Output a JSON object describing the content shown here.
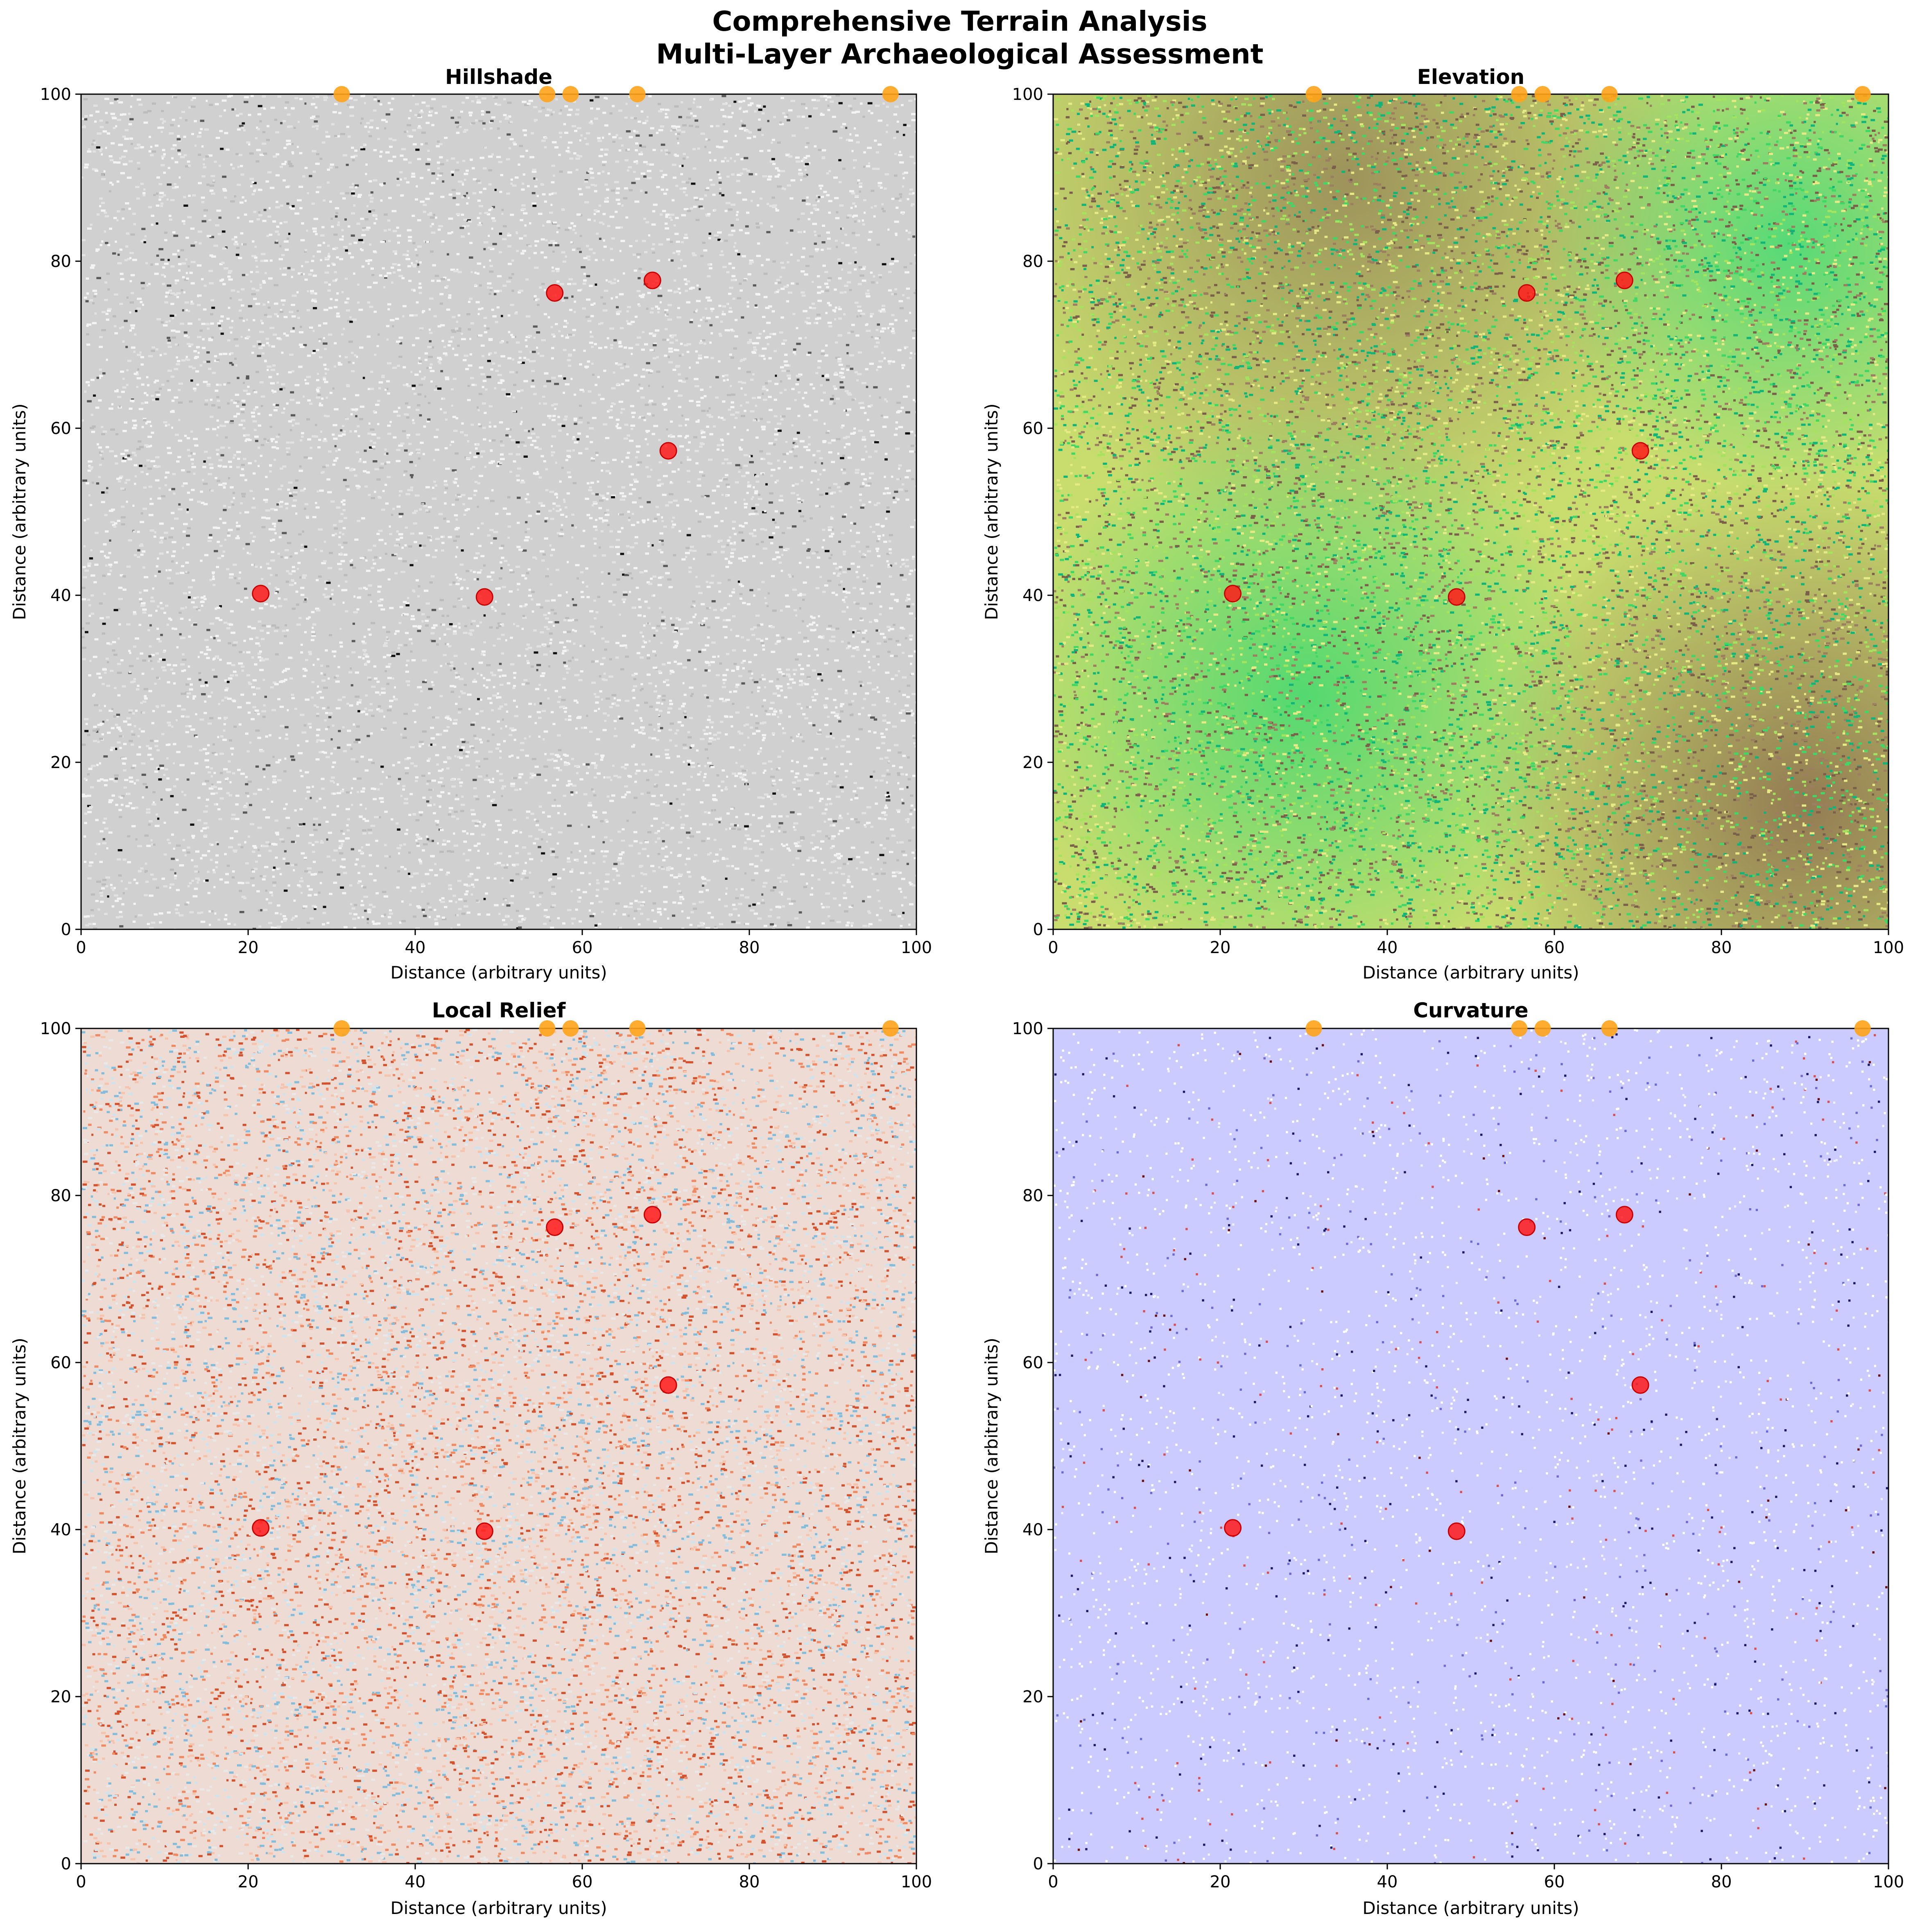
{
  "figure": {
    "title_line1": "Comprehensive Terrain Analysis",
    "title_line2": "Multi-Layer Archaeological Assessment"
  },
  "chart_data": [
    {
      "type": "heatmap",
      "title": "Hillshade",
      "xlabel": "Distance (arbitrary units)",
      "ylabel": "Distance (arbitrary units)",
      "xlim": [
        0,
        100
      ],
      "ylim": [
        0,
        100
      ],
      "xticks": [
        "0",
        "20",
        "40",
        "60",
        "80",
        "100"
      ],
      "yticks": [
        "0",
        "20",
        "40",
        "60",
        "80",
        "100"
      ],
      "colormap": "gray",
      "surface": {
        "base": "#d0d0d0",
        "palette": [
          "#f4f4f4",
          "#e2e2e2",
          "#bcbcbc",
          "#9a9a9a",
          "#5a5a5a",
          "#111111"
        ]
      },
      "red_sites": {
        "color": "#ff1a1a",
        "points": [
          [
            21.5,
            40.2
          ],
          [
            48.3,
            39.8
          ],
          [
            56.7,
            76.2
          ],
          [
            68.4,
            77.7
          ],
          [
            70.3,
            57.3
          ]
        ]
      },
      "orange_sites": {
        "color": "#ffa31a",
        "points": [
          [
            31.2,
            100
          ],
          [
            55.8,
            100
          ],
          [
            58.6,
            100
          ],
          [
            66.6,
            100
          ],
          [
            96.9,
            100
          ]
        ]
      }
    },
    {
      "type": "heatmap",
      "title": "Elevation",
      "xlabel": "Distance (arbitrary units)",
      "ylabel": "Distance (arbitrary units)",
      "xlim": [
        0,
        100
      ],
      "ylim": [
        0,
        100
      ],
      "xticks": [
        "0",
        "20",
        "40",
        "60",
        "80",
        "100"
      ],
      "yticks": [
        "0",
        "20",
        "40",
        "60",
        "80",
        "100"
      ],
      "colormap": "terrain",
      "surface": {
        "base": "#c8dd6e",
        "palette": [
          "#e6ea84",
          "#a3e35e",
          "#3fd866",
          "#11b57a",
          "#9c7f60",
          "#7a5f4a"
        ]
      },
      "red_sites": {
        "color": "#ff1a1a",
        "points": [
          [
            21.5,
            40.2
          ],
          [
            48.3,
            39.8
          ],
          [
            56.7,
            76.2
          ],
          [
            68.4,
            77.7
          ],
          [
            70.3,
            57.3
          ]
        ]
      },
      "orange_sites": {
        "color": "#ffa31a",
        "points": [
          [
            31.2,
            100
          ],
          [
            55.8,
            100
          ],
          [
            58.6,
            100
          ],
          [
            66.6,
            100
          ],
          [
            96.9,
            100
          ]
        ]
      }
    },
    {
      "type": "heatmap",
      "title": "Local Relief",
      "xlabel": "Distance (arbitrary units)",
      "ylabel": "Distance (arbitrary units)",
      "xlim": [
        0,
        100
      ],
      "ylim": [
        0,
        100
      ],
      "xticks": [
        "0",
        "20",
        "40",
        "60",
        "80",
        "100"
      ],
      "yticks": [
        "0",
        "20",
        "40",
        "60",
        "80",
        "100"
      ],
      "colormap": "RdBu_r",
      "surface": {
        "base": "#eedcd4",
        "palette": [
          "#f6c4ac",
          "#f08a62",
          "#d4532f",
          "#cde3ee",
          "#84bcdc",
          "#e8e8e8"
        ]
      },
      "red_sites": {
        "color": "#ff1a1a",
        "points": [
          [
            21.5,
            40.2
          ],
          [
            48.3,
            39.8
          ],
          [
            56.7,
            76.2
          ],
          [
            68.4,
            77.7
          ],
          [
            70.3,
            57.3
          ]
        ]
      },
      "orange_sites": {
        "color": "#ffa31a",
        "points": [
          [
            31.2,
            100
          ],
          [
            55.8,
            100
          ],
          [
            58.6,
            100
          ],
          [
            66.6,
            100
          ],
          [
            96.9,
            100
          ]
        ]
      }
    },
    {
      "type": "heatmap",
      "title": "Curvature",
      "xlabel": "Distance (arbitrary units)",
      "ylabel": "Distance (arbitrary units)",
      "xlim": [
        0,
        100
      ],
      "ylim": [
        0,
        100
      ],
      "xticks": [
        "0",
        "20",
        "40",
        "60",
        "80",
        "100"
      ],
      "yticks": [
        "0",
        "20",
        "40",
        "60",
        "80",
        "100"
      ],
      "colormap": "seismic",
      "surface": {
        "base": "#cbcbff",
        "palette": [
          "#ffffff",
          "#f1f1ff",
          "#6a6ad8",
          "#1a1a6a",
          "#d85050",
          "#6a1010"
        ]
      },
      "red_sites": {
        "color": "#ff1a1a",
        "points": [
          [
            21.5,
            40.2
          ],
          [
            48.3,
            39.8
          ],
          [
            56.7,
            76.2
          ],
          [
            68.4,
            77.7
          ],
          [
            70.3,
            57.3
          ]
        ]
      },
      "orange_sites": {
        "color": "#ffa31a",
        "points": [
          [
            31.2,
            100
          ],
          [
            55.8,
            100
          ],
          [
            58.6,
            100
          ],
          [
            66.6,
            100
          ],
          [
            96.9,
            100
          ]
        ]
      }
    }
  ]
}
